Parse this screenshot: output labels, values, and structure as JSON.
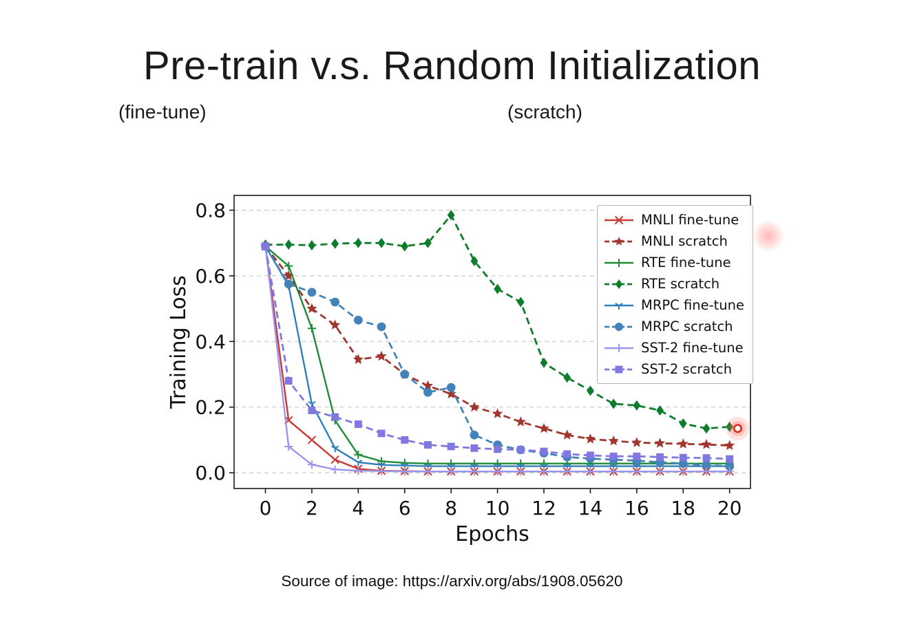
{
  "slide": {
    "title": "Pre-train v.s. Random Initialization",
    "subtitle_left": "(fine-tune)",
    "subtitle_right": "(scratch)",
    "source": "Source of image: https://arxiv.org/abs/1908.05620"
  },
  "chart_data": {
    "type": "line",
    "title": "",
    "xlabel": "Epochs",
    "ylabel": "Training Loss",
    "xlim": [
      -1.35,
      20.9
    ],
    "ylim": [
      -0.048,
      0.845
    ],
    "x_ticks": [
      0,
      2,
      4,
      6,
      8,
      10,
      12,
      14,
      16,
      18,
      20
    ],
    "y_tick_labels": [
      "0.0",
      "0.2",
      "0.4",
      "0.6",
      "0.8"
    ],
    "grid": "horizontal-dashed",
    "grid_color": "#c9c9c9",
    "legend_position": "upper-right",
    "x": [
      0,
      1,
      2,
      3,
      4,
      5,
      6,
      7,
      8,
      9,
      10,
      11,
      12,
      13,
      14,
      15,
      16,
      17,
      18,
      19,
      20
    ],
    "series": [
      {
        "name": "MNLI fine-tune",
        "color": "#c83a32",
        "dash": false,
        "marker": "x",
        "values": [
          0.69,
          0.16,
          0.1,
          0.04,
          0.012,
          0.006,
          0.005,
          0.004,
          0.004,
          0.004,
          0.004,
          0.004,
          0.004,
          0.004,
          0.004,
          0.004,
          0.004,
          0.004,
          0.004,
          0.004,
          0.004
        ]
      },
      {
        "name": "MNLI scratch",
        "color": "#a0362e",
        "dash": true,
        "marker": "star",
        "values": [
          0.69,
          0.6,
          0.5,
          0.45,
          0.345,
          0.355,
          0.3,
          0.265,
          0.24,
          0.2,
          0.18,
          0.155,
          0.135,
          0.115,
          0.103,
          0.097,
          0.092,
          0.09,
          0.088,
          0.086,
          0.083
        ]
      },
      {
        "name": "RTE fine-tune",
        "color": "#1f8a33",
        "dash": false,
        "marker": "plus",
        "values": [
          0.69,
          0.63,
          0.44,
          0.16,
          0.055,
          0.035,
          0.03,
          0.028,
          0.028,
          0.028,
          0.028,
          0.028,
          0.028,
          0.028,
          0.028,
          0.028,
          0.028,
          0.028,
          0.028,
          0.028,
          0.028
        ]
      },
      {
        "name": "RTE scratch",
        "color": "#0d7c2b",
        "dash": true,
        "marker": "diamond",
        "values": [
          0.695,
          0.695,
          0.693,
          0.698,
          0.7,
          0.7,
          0.69,
          0.7,
          0.785,
          0.645,
          0.56,
          0.52,
          0.335,
          0.29,
          0.25,
          0.21,
          0.205,
          0.19,
          0.15,
          0.135,
          0.14
        ]
      },
      {
        "name": "MRPC fine-tune",
        "color": "#2e7fba",
        "dash": false,
        "marker": "tri",
        "values": [
          0.69,
          0.57,
          0.21,
          0.075,
          0.032,
          0.024,
          0.022,
          0.02,
          0.02,
          0.02,
          0.02,
          0.02,
          0.02,
          0.02,
          0.02,
          0.02,
          0.02,
          0.02,
          0.02,
          0.02,
          0.02
        ]
      },
      {
        "name": "MRPC scratch",
        "color": "#4383b8",
        "dash": true,
        "marker": "circle",
        "values": [
          0.69,
          0.575,
          0.55,
          0.52,
          0.465,
          0.445,
          0.3,
          0.245,
          0.26,
          0.115,
          0.085,
          0.07,
          0.06,
          0.048,
          0.043,
          0.04,
          0.037,
          0.032,
          0.028,
          0.023,
          0.02
        ]
      },
      {
        "name": "SST-2 fine-tune",
        "color": "#9a96ec",
        "dash": false,
        "marker": "plus",
        "values": [
          0.69,
          0.08,
          0.025,
          0.01,
          0.006,
          0.005,
          0.004,
          0.004,
          0.004,
          0.004,
          0.004,
          0.004,
          0.004,
          0.004,
          0.004,
          0.004,
          0.004,
          0.004,
          0.004,
          0.004,
          0.004
        ]
      },
      {
        "name": "SST-2 scratch",
        "color": "#8177e0",
        "dash": true,
        "marker": "square",
        "values": [
          0.69,
          0.28,
          0.19,
          0.17,
          0.148,
          0.12,
          0.1,
          0.085,
          0.08,
          0.075,
          0.072,
          0.07,
          0.065,
          0.057,
          0.053,
          0.05,
          0.05,
          0.048,
          0.046,
          0.045,
          0.042
        ]
      }
    ],
    "annotations": [
      {
        "type": "highlight-ring",
        "x": 20.35,
        "y": 0.135,
        "color": "#e02418"
      }
    ]
  }
}
